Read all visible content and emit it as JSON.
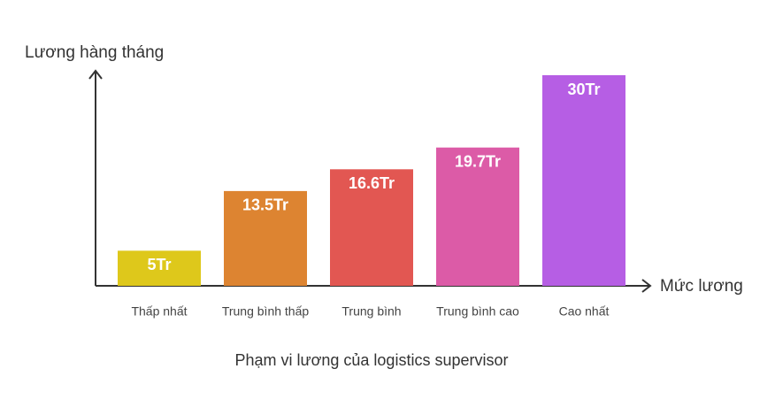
{
  "chart_data": {
    "type": "bar",
    "title": "Phạm vi lương của logistics supervisor",
    "y_label": "Lương hàng tháng",
    "x_label": "Mức lương",
    "categories": [
      "Thấp nhất",
      "Trung bình thấp",
      "Trung bình",
      "Trung bình cao",
      "Cao nhất"
    ],
    "values": [
      5,
      13.5,
      16.6,
      19.7,
      30
    ],
    "value_labels": [
      "5Tr",
      "13.5Tr",
      "16.6Tr",
      "19.7Tr",
      "30Tr"
    ],
    "colors": [
      "#dec81b",
      "#dd8431",
      "#e25752",
      "#dc5ba7",
      "#b65ee4"
    ]
  }
}
